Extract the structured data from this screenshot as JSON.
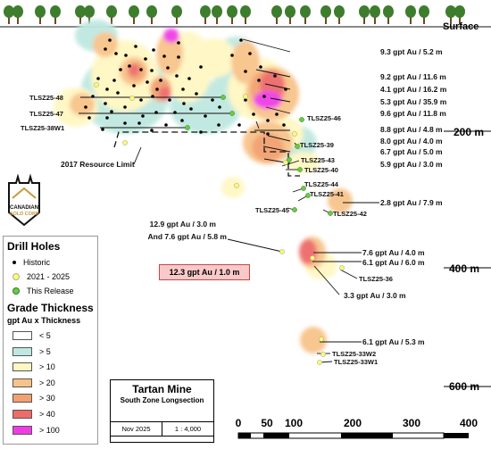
{
  "surface_label": "Surface",
  "depth_labels": [
    "200 m",
    "400 m",
    "600 m"
  ],
  "intercepts": [
    "9.3 gpt Au / 5.2 m",
    "9.2 gpt Au / 11.6 m",
    "4.1 gpt Au / 16.2 m",
    "5.3 gpt Au / 35.9 m",
    "9.6 gpt Au / 11.8 m",
    "8.8 gpt Au / 4.8 m",
    "8.0 gpt Au / 4.0 m",
    "6.7 gpt Au / 5.0 m",
    "5.9 gpt Au / 3.0 m",
    "2.8 gpt Au / 7.9 m",
    "12.9 gpt Au / 3.0 m",
    "And 7.6 gpt Au / 5.8 m",
    "7.6 gpt Au / 4.0 m",
    "6.1 gpt Au / 6.0 m",
    "3.3 gpt Au / 3.0 m",
    "6.1 gpt Au / 5.3 m"
  ],
  "callout": "12.3 gpt Au / 1.0 m",
  "drillholes": [
    "TLSZ25-48",
    "TLSZ25-47",
    "TLSZ25-38W1",
    "TLSZ25-46",
    "TLSZ25-39",
    "TLSZ25-43",
    "TLSZ25-40",
    "TLSZ25-44",
    "TLSZ25-41",
    "TLSZ25-42",
    "TLSZ25-45",
    "TLSZ25-36",
    "TLSZ25-33W2",
    "TLSZ25-33W1"
  ],
  "resource_limit": "2017 Resource Limit",
  "logo": {
    "line1": "CANADIAN",
    "line2": "GOLD CORP"
  },
  "legend": {
    "drill_title": "Drill Holes",
    "drill_items": [
      {
        "label": "Historic",
        "color": "#000000"
      },
      {
        "label": "2021 - 2025",
        "color": "#ffff66"
      },
      {
        "label": "This Release",
        "color": "#66cc44"
      }
    ],
    "grade_title": "Grade Thickness",
    "grade_sub": "gpt Au x Thickness",
    "grade_items": [
      {
        "label": "< 5",
        "color": "#ffffff"
      },
      {
        "label": "> 5",
        "color": "#bfe8e0"
      },
      {
        "label": "> 10",
        "color": "#fff7c2"
      },
      {
        "label": "> 20",
        "color": "#f8c38a"
      },
      {
        "label": "> 30",
        "color": "#f3a070"
      },
      {
        "label": "> 40",
        "color": "#ee6b6b"
      },
      {
        "label": "> 100",
        "color": "#f03ce6"
      }
    ]
  },
  "title_block": {
    "name": "Tartan Mine",
    "subtitle": "South Zone Longsection",
    "date": "Nov 2025",
    "scale": "1 : 4,000"
  },
  "scale_bar": {
    "ticks": [
      "0",
      "50",
      "100",
      "200",
      "300",
      "400"
    ]
  }
}
